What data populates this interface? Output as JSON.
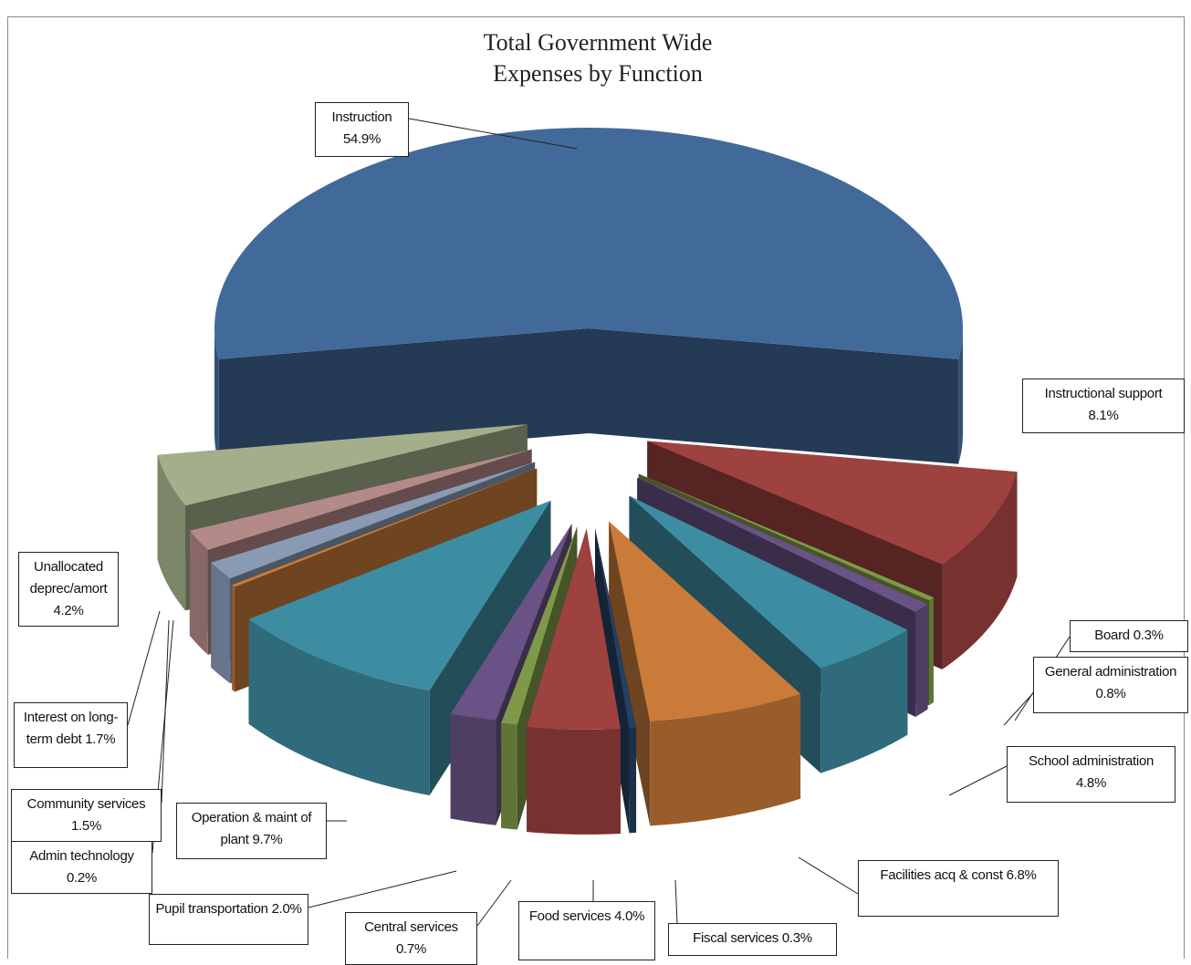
{
  "chart_data": {
    "type": "pie",
    "title": "Total Government Wide Expenses by Function",
    "categories": [
      "Instruction",
      "Instructional support",
      "Board",
      "General administration",
      "School administration",
      "Facilities acq & const",
      "Fiscal services",
      "Food services",
      "Central services",
      "Pupil transportation",
      "Operation & maint of plant",
      "Admin technology",
      "Community services",
      "Interest on long-term debt",
      "Unallocated deprec/amort"
    ],
    "values": [
      54.9,
      8.1,
      0.3,
      0.8,
      4.8,
      6.8,
      0.3,
      4.0,
      0.7,
      2.0,
      9.7,
      0.2,
      1.5,
      1.7,
      4.2
    ],
    "value_labels": [
      "54.9%",
      "8.1%",
      "0.3%",
      "0.8%",
      "4.8%",
      "6.8%",
      "0.3%",
      "4.0%",
      "0.7%",
      "2.0%",
      "9.7%",
      "0.2%",
      "1.5%",
      "1.7%",
      "4.2%"
    ],
    "colors": [
      "#4f81bd",
      "#c0504d",
      "#9bbb59",
      "#8064a2",
      "#4bacc6",
      "#f79646",
      "#2c4d75",
      "#c0504d",
      "#9bbb59",
      "#8064a2",
      "#4bacc6",
      "#f79646",
      "#a8bcdc",
      "#dca8a6",
      "#c6d6a8"
    ]
  }
}
